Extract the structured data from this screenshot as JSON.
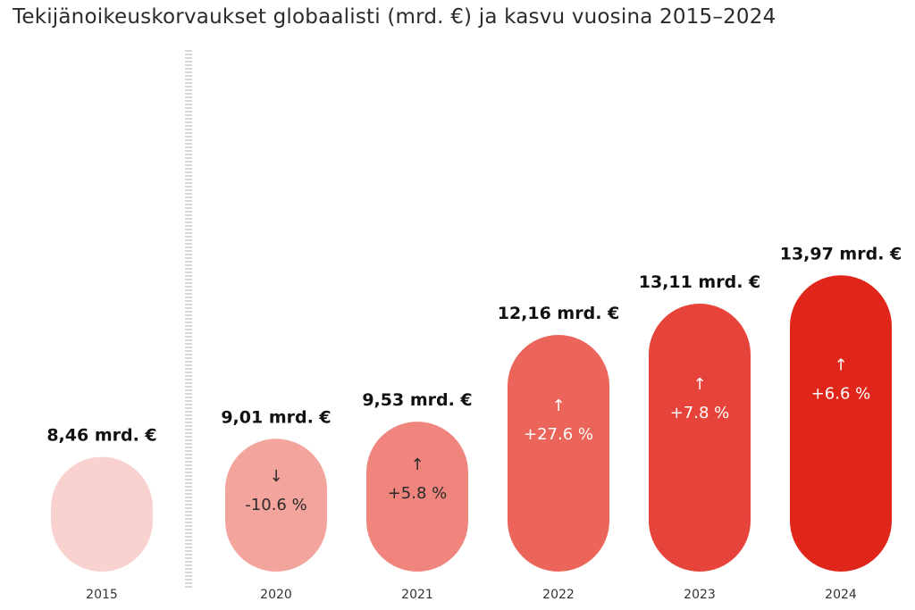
{
  "chart_data": {
    "type": "bar",
    "title": "Tekijänoikeuskorvaukset globaalisti (mrd. €) ja kasvu vuosina 2015–2024",
    "xlabel": "",
    "ylabel": "",
    "ylim": [
      0,
      14
    ],
    "grid": false,
    "legend": "none",
    "categories": [
      "2015",
      "2020",
      "2021",
      "2022",
      "2023",
      "2024"
    ],
    "values": [
      8.46,
      9.01,
      9.53,
      12.16,
      13.11,
      13.97
    ],
    "value_labels": [
      "8,46 mrd. €",
      "9,01 mrd. €",
      "9,53 mrd. €",
      "12,16 mrd. €",
      "13,11 mrd. €",
      "13,97 mrd. €"
    ],
    "change_labels": [
      "",
      "-10.6 %",
      "+5.8 %",
      "+27.6 %",
      "+7.8 %",
      "+6.6 %"
    ],
    "change_arrows": [
      "",
      "↓",
      "↑",
      "↑",
      "↑",
      "↑"
    ],
    "colors": [
      "#f9d2cf",
      "#f3a49d",
      "#ef857d",
      "#eb655a",
      "#e6443a",
      "#e0261b"
    ],
    "change_text_colors": [
      "#2b2b2b",
      "#2b2b2b",
      "#2b2b2b",
      "#ffffff",
      "#ffffff",
      "#ffffff"
    ]
  }
}
